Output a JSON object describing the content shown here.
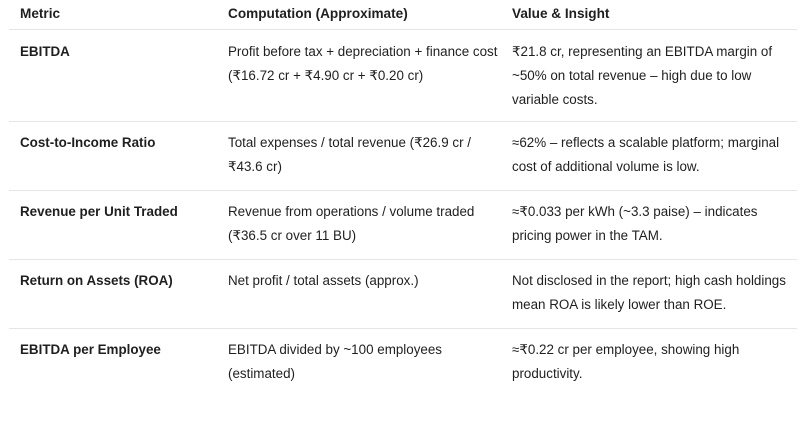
{
  "table": {
    "headers": [
      "Metric",
      "Computation (Approximate)",
      "Value & Insight"
    ],
    "rows": [
      {
        "metric": "EBITDA",
        "computation": "Profit before tax + depreciation + finance cost (₹16.72 cr + ₹4.90 cr + ₹0.20 cr)",
        "insight": "₹21.8 cr, representing an EBITDA margin of ~50% on total revenue – high due to low variable costs."
      },
      {
        "metric": "Cost-to-Income Ratio",
        "computation": "Total expenses / total revenue (₹26.9 cr / ₹43.6 cr)",
        "insight": "≈62% – reflects a scalable platform; marginal cost of additional volume is low."
      },
      {
        "metric": "Revenue per Unit Traded",
        "computation": "Revenue from operations / volume traded (₹36.5 cr over 11 BU)",
        "insight": "≈₹0.033 per kWh (~3.3 paise) – indicates pricing power in the TAM."
      },
      {
        "metric": "Return on Assets (ROA)",
        "computation": "Net profit / total assets (approx.)",
        "insight": "Not disclosed in the report; high cash holdings mean ROA is likely lower than ROE."
      },
      {
        "metric": "EBITDA per Employee",
        "computation": "EBITDA divided by ~100 employees (estimated)",
        "insight": "≈₹0.22 cr per employee, showing high productivity."
      }
    ]
  }
}
